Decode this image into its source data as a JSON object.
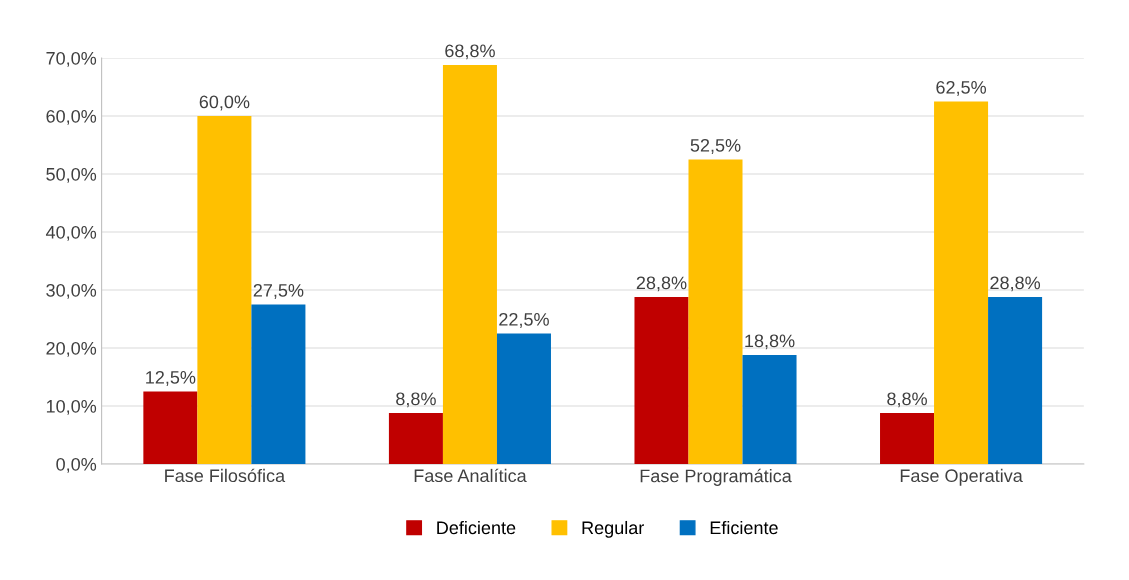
{
  "chart_data": {
    "type": "bar",
    "categories": [
      "Fase Filosófica",
      "Fase Analítica",
      "Fase Programática",
      "Fase Operativa"
    ],
    "series": [
      {
        "name": "Deficiente",
        "color": "#c00000",
        "values": [
          12.5,
          8.8,
          28.8,
          8.8
        ],
        "value_labels": [
          "12,5%",
          "8,8%",
          "28,8%",
          "8,8%"
        ]
      },
      {
        "name": "Regular",
        "color": "#ffc000",
        "values": [
          60.0,
          68.8,
          52.5,
          62.5
        ],
        "value_labels": [
          "60,0%",
          "68,8%",
          "52,5%",
          "62,5%"
        ]
      },
      {
        "name": "Eficiente",
        "color": "#0070c0",
        "values": [
          27.5,
          22.5,
          18.8,
          28.8
        ],
        "value_labels": [
          "27,5%",
          "22,5%",
          "18,8%",
          "28,8%"
        ]
      }
    ],
    "ylim": [
      0,
      70
    ],
    "yticks": [
      {
        "value": 0,
        "label": "0,0%"
      },
      {
        "value": 10,
        "label": "10,0%"
      },
      {
        "value": 20,
        "label": "20,0%"
      },
      {
        "value": 30,
        "label": "30,0%"
      },
      {
        "value": 40,
        "label": "40,0%"
      },
      {
        "value": 50,
        "label": "50,0%"
      },
      {
        "value": 60,
        "label": "60,0%"
      },
      {
        "value": 70,
        "label": "70,0%"
      }
    ],
    "grid": "y",
    "legend": "bottom"
  }
}
